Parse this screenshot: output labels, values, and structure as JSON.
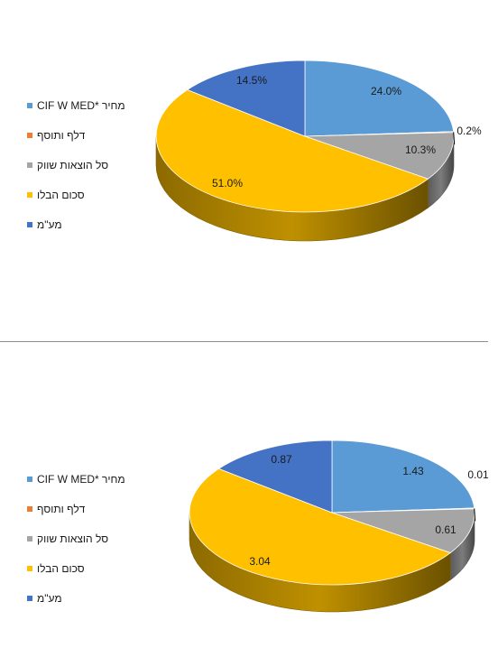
{
  "chart_data": [
    {
      "type": "pie",
      "legend_position": "left",
      "label_format": "percent",
      "categories": [
        "CIF W MED* מחיר",
        "דלף ותוסף",
        "סל הוצאות שווק",
        "סכום הבלו",
        "מע\"מ"
      ],
      "values": [
        24.0,
        0.2,
        10.3,
        51.0,
        14.5
      ],
      "labels": [
        "24.0%",
        "0.2%",
        "10.3%",
        "51.0%",
        "14.5%"
      ],
      "colors": [
        "#5B9BD5",
        "#ED7D31",
        "#A5A5A5",
        "#FFC000",
        "#4472C4"
      ]
    },
    {
      "type": "pie",
      "legend_position": "left",
      "label_format": "value",
      "categories": [
        "CIF W MED* מחיר",
        "דלף ותוסף",
        "סל הוצאות שווק",
        "סכום הבלו",
        "מע\"מ"
      ],
      "values": [
        1.43,
        0.01,
        0.61,
        3.04,
        0.87
      ],
      "labels": [
        "1.43",
        "0.01",
        "0.61",
        "3.04",
        "0.87"
      ],
      "colors": [
        "#5B9BD5",
        "#ED7D31",
        "#A5A5A5",
        "#FFC000",
        "#4472C4"
      ]
    }
  ]
}
